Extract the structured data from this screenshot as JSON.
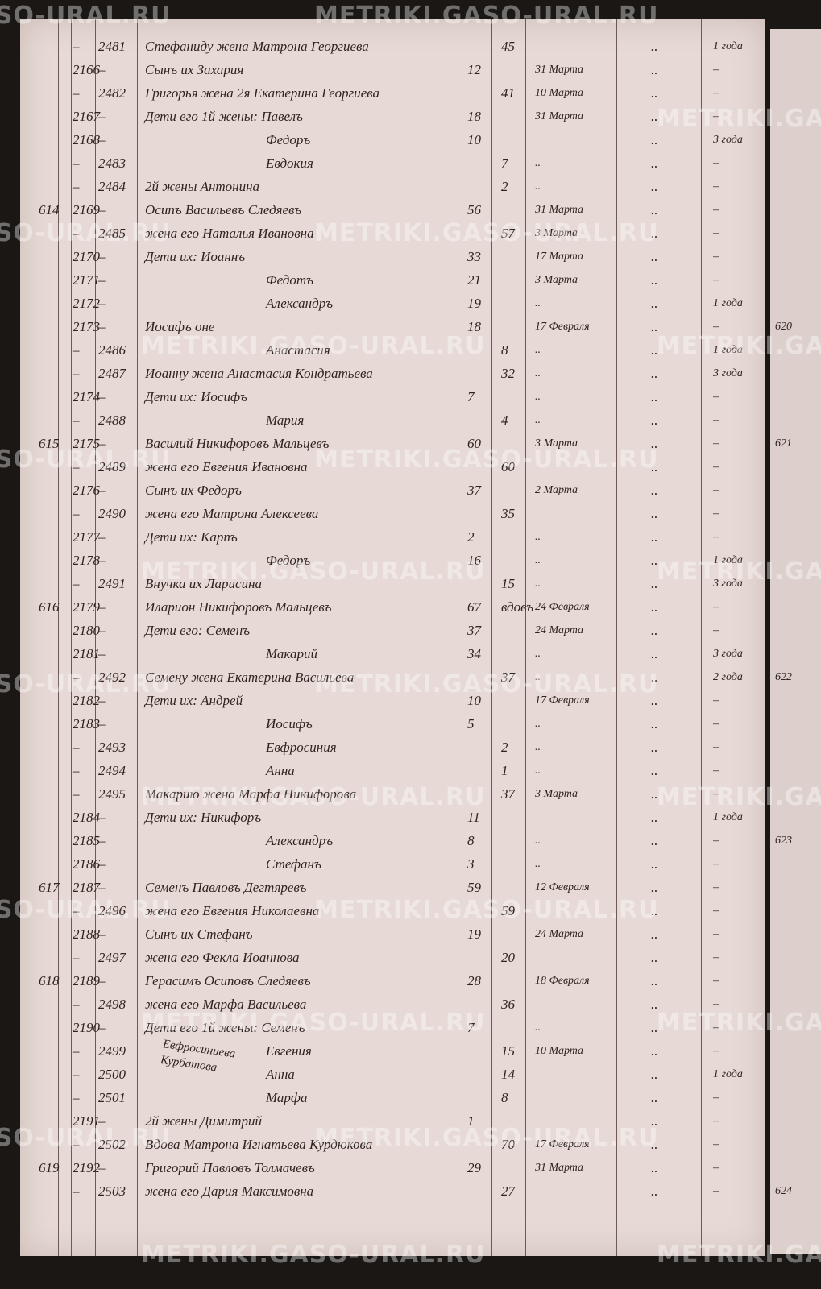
{
  "watermark": "METRIKI.GASO-URAL.RU",
  "margin_note": "Евфросиниева Курбатова",
  "rows": [
    {
      "m": "–",
      "f": "2481",
      "name": "Стефаниду жена Матрона Георгиева",
      "fa": "45",
      "col": "..",
      "note": "1 года"
    },
    {
      "m": "2166",
      "f": "–",
      "name": "Сынъ их Захария",
      "ma": "12",
      "date": "31 Марта",
      "col": "..",
      "note": "–"
    },
    {
      "m": "–",
      "f": "2482",
      "name": "Григорья жена 2я Екатерина Георгиева",
      "fa": "41",
      "date": "10 Марта",
      "col": "..",
      "note": "–"
    },
    {
      "m": "2167",
      "f": "–",
      "name": "Дети его 1й жены: Павелъ",
      "ma": "18",
      "date": "31 Марта",
      "col": "..",
      "note": "–"
    },
    {
      "m": "2168",
      "f": "–",
      "name": "Федоръ",
      "ma": "10",
      "col": "..",
      "note": "3 года"
    },
    {
      "m": "–",
      "f": "2483",
      "name": "Евдокия",
      "fa": "7",
      "date": "..",
      "col": "..",
      "note": "–"
    },
    {
      "m": "–",
      "f": "2484",
      "name": "2й жены Антонина",
      "fa": "2",
      "date": "..",
      "col": "..",
      "note": "–"
    },
    {
      "h": "614",
      "m": "2169",
      "f": "–",
      "name": "Осипъ Васильевъ Следяевъ",
      "ma": "56",
      "date": "31 Марта",
      "col": "..",
      "note": "–"
    },
    {
      "m": "–",
      "f": "2485",
      "name": "жена его Наталья Ивановна",
      "fa": "57",
      "date": "3 Марта",
      "col": "..",
      "note": "–"
    },
    {
      "m": "2170",
      "f": "–",
      "name": "Дети их: Иоаннъ",
      "ma": "33",
      "date": "17 Марта",
      "col": "..",
      "note": "–"
    },
    {
      "m": "2171",
      "f": "–",
      "name": "Федотъ",
      "ma": "21",
      "date": "3 Марта",
      "col": "..",
      "note": "–"
    },
    {
      "m": "2172",
      "f": "–",
      "name": "Александръ",
      "ma": "19",
      "date": "..",
      "col": "..",
      "note": "1 года"
    },
    {
      "m": "2173",
      "f": "–",
      "name": "Иосифъ оне",
      "ma": "18",
      "date": "17 Февраля",
      "col": "..",
      "note": "–",
      "side": "620"
    },
    {
      "m": "–",
      "f": "2486",
      "name": "Анастасия",
      "fa": "8",
      "date": "..",
      "col": "..",
      "note": "1 года"
    },
    {
      "m": "–",
      "f": "2487",
      "name": "Иоанну жена Анастасия Кондратьева",
      "fa": "32",
      "date": "..",
      "col": "..",
      "note": "3 года"
    },
    {
      "m": "2174",
      "f": "–",
      "name": "Дети их: Иосифъ",
      "ma": "7",
      "date": "..",
      "col": "..",
      "note": "–"
    },
    {
      "m": "–",
      "f": "2488",
      "name": "Мария",
      "fa": "4",
      "date": "..",
      "col": "..",
      "note": "–"
    },
    {
      "h": "615",
      "m": "2175",
      "f": "–",
      "name": "Василий Никифоровъ Мальцевъ",
      "ma": "60",
      "date": "3 Марта",
      "col": "..",
      "note": "–",
      "side": "621"
    },
    {
      "m": "–",
      "f": "2489",
      "name": "жена его Евгения Ивановна",
      "fa": "60",
      "col": "..",
      "note": "–"
    },
    {
      "m": "2176",
      "f": "–",
      "name": "Сынъ их Федоръ",
      "ma": "37",
      "date": "2 Марта",
      "col": "..",
      "note": "–"
    },
    {
      "m": "–",
      "f": "2490",
      "name": "жена его Матрона Алексеева",
      "fa": "35",
      "col": "..",
      "note": "–"
    },
    {
      "m": "2177",
      "f": "–",
      "name": "Дети их: Карпъ",
      "ma": "2",
      "date": "..",
      "col": "..",
      "note": "–"
    },
    {
      "m": "2178",
      "f": "–",
      "name": "Федоръ",
      "ma": "16",
      "date": "..",
      "col": "..",
      "note": "1 года"
    },
    {
      "m": "–",
      "f": "2491",
      "name": "Внучка их Ларисина",
      "fa": "15",
      "date": "..",
      "col": "..",
      "note": "3 года"
    },
    {
      "h": "616",
      "m": "2179",
      "f": "–",
      "name": "Иларион Никифоровъ Мальцевъ",
      "ma": "67",
      "fa": "вдовъ",
      "date": "24 Февраля",
      "col": "..",
      "note": "–"
    },
    {
      "m": "2180",
      "f": "–",
      "name": "Дети его: Семенъ",
      "ma": "37",
      "date": "24 Марта",
      "col": "..",
      "note": "–"
    },
    {
      "m": "2181",
      "f": "–",
      "name": "Макарий",
      "ma": "34",
      "date": "..",
      "col": "..",
      "note": "3 года"
    },
    {
      "m": "–",
      "f": "2492",
      "name": "Семену жена Екатерина Васильева",
      "fa": "37",
      "date": "..",
      "col": "..",
      "note": "2 года",
      "side": "622"
    },
    {
      "m": "2182",
      "f": "–",
      "name": "Дети их: Андрей",
      "ma": "10",
      "date": "17 Февраля",
      "col": "..",
      "note": "–"
    },
    {
      "m": "2183",
      "f": "–",
      "name": "Иосифъ",
      "ma": "5",
      "date": "..",
      "col": "..",
      "note": "–"
    },
    {
      "m": "–",
      "f": "2493",
      "name": "Евфросиния",
      "fa": "2",
      "date": "..",
      "col": "..",
      "note": "–"
    },
    {
      "m": "–",
      "f": "2494",
      "name": "Анна",
      "fa": "1",
      "date": "..",
      "col": "..",
      "note": "–"
    },
    {
      "m": "–",
      "f": "2495",
      "name": "Макарию жена Марфа Никифорова",
      "fa": "37",
      "date": "3 Марта",
      "col": "..",
      "note": "–"
    },
    {
      "m": "2184",
      "f": "–",
      "name": "Дети их: Никифоръ",
      "ma": "11",
      "col": "..",
      "note": "1 года"
    },
    {
      "m": "2185",
      "f": "–",
      "name": "Александръ",
      "ma": "8",
      "date": "..",
      "col": "..",
      "note": "–",
      "side": "623"
    },
    {
      "m": "2186",
      "f": "–",
      "name": "Стефанъ",
      "ma": "3",
      "date": "..",
      "col": "..",
      "note": "–"
    },
    {
      "h": "617",
      "m": "2187",
      "f": "–",
      "name": "Семенъ Павловъ Дегтяревъ",
      "ma": "59",
      "date": "12 Февраля",
      "col": "..",
      "note": "–"
    },
    {
      "m": "–",
      "f": "2496",
      "name": "жена его Евгения Николаевна",
      "fa": "59",
      "col": "..",
      "note": "–"
    },
    {
      "m": "2188",
      "f": "–",
      "name": "Сынъ их Стефанъ",
      "ma": "19",
      "date": "24 Марта",
      "col": "..",
      "note": "–"
    },
    {
      "m": "–",
      "f": "2497",
      "name": "жена его Фекла Иоаннова",
      "fa": "20",
      "col": "..",
      "note": "–"
    },
    {
      "h": "618",
      "m": "2189",
      "f": "–",
      "name": "Герасимъ Осиповъ Следяевъ",
      "ma": "28",
      "date": "18 Февраля",
      "col": "..",
      "note": "–"
    },
    {
      "m": "–",
      "f": "2498",
      "name": "жена его Марфа Васильева",
      "fa": "36",
      "col": "..",
      "note": "–"
    },
    {
      "m": "2190",
      "f": "–",
      "name": "Дети его 1й жены: Семенъ",
      "ma": "7",
      "date": "..",
      "col": "..",
      "note": "–"
    },
    {
      "m": "–",
      "f": "2499",
      "name": "Евгения",
      "fa": "15",
      "date": "10 Марта",
      "col": "..",
      "note": "–"
    },
    {
      "m": "–",
      "f": "2500",
      "name": "Анна",
      "fa": "14",
      "col": "..",
      "note": "1 года"
    },
    {
      "m": "–",
      "f": "2501",
      "name": "Марфа",
      "fa": "8",
      "col": "..",
      "note": "–"
    },
    {
      "m": "2191",
      "f": "–",
      "name": "2й жены Димитрий",
      "ma": "1",
      "col": "..",
      "note": "–"
    },
    {
      "m": "–",
      "f": "2502",
      "name": "Вдова Матрона Игнатьева Курдюкова",
      "fa": "70",
      "date": "17 Февраля",
      "col": "..",
      "note": "–"
    },
    {
      "h": "619",
      "m": "2192",
      "f": "–",
      "name": "Григорий Павловъ Толмачевъ",
      "ma": "29",
      "date": "31 Марта",
      "col": "..",
      "note": "–"
    },
    {
      "m": "–",
      "f": "2503",
      "name": "жена его Дария Максимовна",
      "fa": "27",
      "col": "..",
      "note": "–",
      "side": "624"
    }
  ]
}
